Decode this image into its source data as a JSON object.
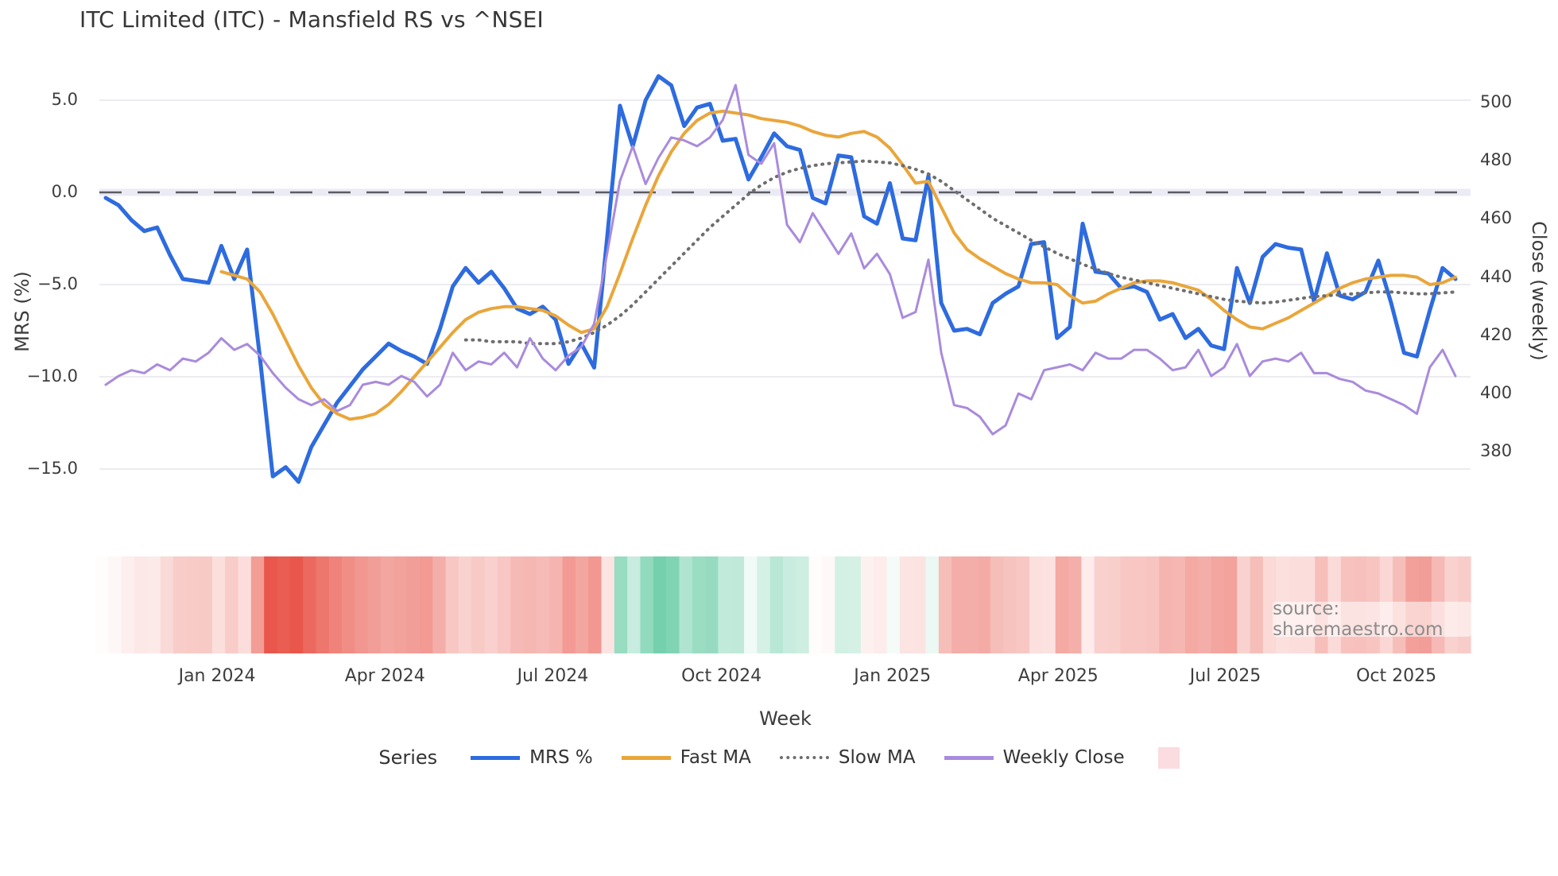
{
  "title": "ITC Limited (ITC) - Mansfield RS vs ^NSEI",
  "watermark": "source: sharemaestro.com",
  "axes": {
    "x_label": "Week",
    "y_left_label": "MRS (%)",
    "y_right_label": "Close (weekly)",
    "y_left_ticks": [
      {
        "label": "5.0",
        "value": 5
      },
      {
        "label": "0.0",
        "value": 0
      },
      {
        "label": "−5.0",
        "value": -5
      },
      {
        "label": "−10.0",
        "value": -10
      },
      {
        "label": "−15.0",
        "value": -15
      }
    ],
    "y_right_ticks": [
      {
        "label": "500",
        "value": 500
      },
      {
        "label": "480",
        "value": 480
      },
      {
        "label": "460",
        "value": 460
      },
      {
        "label": "440",
        "value": 440
      },
      {
        "label": "420",
        "value": 420
      },
      {
        "label": "400",
        "value": 400
      },
      {
        "label": "380",
        "value": 380
      }
    ],
    "x_ticks": [
      {
        "label": "Jan 2024",
        "week": 8.66
      },
      {
        "label": "Apr 2024",
        "week": 21.72
      },
      {
        "label": "Jul 2024",
        "week": 34.78
      },
      {
        "label": "Oct 2024",
        "week": 47.9
      },
      {
        "label": "Jan 2025",
        "week": 61.2
      },
      {
        "label": "Apr 2025",
        "week": 74.1
      },
      {
        "label": "Jul 2025",
        "week": 87.1
      },
      {
        "label": "Oct 2025",
        "week": 100.4
      }
    ]
  },
  "legend": {
    "series_label": "Series",
    "items": [
      {
        "label": "MRS %",
        "color": "#2d6bdf",
        "style": "solid"
      },
      {
        "label": "Fast MA",
        "color": "#e9a63b",
        "style": "solid"
      },
      {
        "label": "Slow MA",
        "color": "#6e6e6e",
        "style": "dotted"
      },
      {
        "label": "Weekly Close",
        "color": "#a98bdc",
        "style": "solid"
      }
    ],
    "heatmap_swatch_color": "#fbdce0"
  },
  "chart_data": {
    "type": "line",
    "x_unit": "week_index",
    "n_weeks": 106,
    "grid": true,
    "zero_line": {
      "value": 0,
      "color": "#5b5c62",
      "band_color": "#ebebf5"
    },
    "y_left_range": [
      -17,
      7
    ],
    "y_right_range": [
      375,
      510
    ],
    "series": [
      {
        "name": "MRS %",
        "axis": "left",
        "color": "#2d6bdf",
        "style": "solid",
        "width": 5,
        "values": [
          -0.3,
          -0.7,
          -1.5,
          -2.1,
          -1.9,
          -3.4,
          -4.7,
          -4.8,
          -4.9,
          -2.9,
          -4.7,
          -3.1,
          -9.0,
          -15.4,
          -14.9,
          -15.7,
          -13.8,
          -12.6,
          -11.4,
          -10.5,
          -9.6,
          -8.9,
          -8.2,
          -8.6,
          -8.9,
          -9.3,
          -7.4,
          -5.1,
          -4.1,
          -4.9,
          -4.3,
          -5.2,
          -6.3,
          -6.6,
          -6.2,
          -6.9,
          -9.3,
          -8.2,
          -9.5,
          -2.5,
          4.7,
          2.5,
          5.0,
          6.3,
          5.8,
          3.6,
          4.6,
          4.8,
          2.8,
          2.9,
          0.7,
          1.9,
          3.2,
          2.5,
          2.3,
          -0.3,
          -0.6,
          2.0,
          1.9,
          -1.3,
          -1.7,
          0.5,
          -2.5,
          -2.6,
          0.9,
          -6.0,
          -7.5,
          -7.4,
          -7.7,
          -6.0,
          -5.5,
          -5.1,
          -2.8,
          -2.7,
          -7.9,
          -7.3,
          -1.7,
          -4.3,
          -4.4,
          -5.2,
          -5.1,
          -5.4,
          -6.9,
          -6.6,
          -7.9,
          -7.4,
          -8.3,
          -8.5,
          -4.1,
          -6.0,
          -3.5,
          -2.8,
          -3.0,
          -3.1,
          -5.9,
          -3.3,
          -5.6,
          -5.8,
          -5.4,
          -3.7,
          -6.0,
          -8.7,
          -8.9,
          -6.4,
          -4.1,
          -4.7
        ]
      },
      {
        "name": "Fast MA",
        "axis": "left",
        "color": "#e9a63b",
        "style": "solid",
        "width": 4,
        "values": [
          null,
          null,
          null,
          null,
          null,
          null,
          null,
          null,
          null,
          -4.3,
          -4.5,
          -4.7,
          -5.4,
          -6.6,
          -8.0,
          -9.4,
          -10.6,
          -11.5,
          -12.0,
          -12.3,
          -12.2,
          -12.0,
          -11.5,
          -10.8,
          -10.0,
          -9.2,
          -8.4,
          -7.6,
          -6.9,
          -6.5,
          -6.3,
          -6.2,
          -6.2,
          -6.3,
          -6.4,
          -6.7,
          -7.2,
          -7.6,
          -7.4,
          -6.2,
          -4.4,
          -2.5,
          -0.7,
          0.9,
          2.2,
          3.2,
          3.9,
          4.3,
          4.4,
          4.3,
          4.2,
          4.0,
          3.9,
          3.8,
          3.6,
          3.3,
          3.1,
          3.0,
          3.2,
          3.3,
          3.0,
          2.4,
          1.5,
          0.5,
          0.6,
          -0.8,
          -2.2,
          -3.1,
          -3.6,
          -4.0,
          -4.4,
          -4.7,
          -4.9,
          -4.9,
          -5.0,
          -5.6,
          -6.0,
          -5.9,
          -5.5,
          -5.2,
          -4.9,
          -4.8,
          -4.8,
          -4.9,
          -5.1,
          -5.3,
          -5.8,
          -6.4,
          -6.9,
          -7.3,
          -7.4,
          -7.1,
          -6.8,
          -6.4,
          -6.0,
          -5.6,
          -5.2,
          -4.9,
          -4.7,
          -4.6,
          -4.5,
          -4.5,
          -4.6,
          -5.0,
          -4.9,
          -4.6
        ]
      },
      {
        "name": "Slow MA",
        "axis": "left",
        "color": "#6e6e6e",
        "style": "dotted",
        "width": 4,
        "values": [
          null,
          null,
          null,
          null,
          null,
          null,
          null,
          null,
          null,
          null,
          null,
          null,
          null,
          null,
          null,
          null,
          null,
          null,
          null,
          null,
          null,
          null,
          null,
          null,
          null,
          null,
          null,
          null,
          -8.0,
          -8.0,
          -8.1,
          -8.1,
          -8.1,
          -8.2,
          -8.2,
          -8.2,
          -8.1,
          -7.9,
          -7.6,
          -7.2,
          -6.7,
          -6.1,
          -5.4,
          -4.7,
          -4.0,
          -3.3,
          -2.6,
          -1.9,
          -1.3,
          -0.7,
          -0.1,
          0.4,
          0.8,
          1.1,
          1.3,
          1.45,
          1.55,
          1.6,
          1.65,
          1.7,
          1.65,
          1.6,
          1.45,
          1.25,
          1.0,
          0.6,
          0.1,
          -0.4,
          -0.9,
          -1.4,
          -1.8,
          -2.2,
          -2.6,
          -2.95,
          -3.3,
          -3.6,
          -3.9,
          -4.15,
          -4.4,
          -4.6,
          -4.75,
          -4.9,
          -5.05,
          -5.2,
          -5.35,
          -5.5,
          -5.65,
          -5.8,
          -5.9,
          -5.95,
          -6.0,
          -5.95,
          -5.85,
          -5.75,
          -5.65,
          -5.6,
          -5.55,
          -5.5,
          -5.45,
          -5.4,
          -5.4,
          -5.45,
          -5.5,
          -5.5,
          -5.45,
          -5.4
        ]
      },
      {
        "name": "Weekly Close",
        "axis": "right",
        "color": "#a98bdc",
        "style": "solid",
        "width": 3,
        "values": [
          403,
          406,
          408,
          407,
          410,
          408,
          412,
          411,
          414,
          419,
          415,
          417,
          413,
          407,
          402,
          398,
          396,
          398,
          394,
          396,
          403,
          404,
          403,
          406,
          404,
          399,
          403,
          414,
          408,
          411,
          410,
          414,
          409,
          419,
          412,
          408,
          413,
          416,
          424,
          448,
          473,
          485,
          472,
          481,
          488,
          487,
          485,
          488,
          494,
          506,
          482,
          479,
          486,
          458,
          452,
          462,
          455,
          448,
          455,
          443,
          448,
          441,
          426,
          428,
          446,
          414,
          396,
          395,
          392,
          386,
          389,
          400,
          398,
          408,
          409,
          410,
          408,
          414,
          412,
          412,
          415,
          415,
          412,
          408,
          409,
          415,
          406,
          409,
          417,
          406,
          411,
          412,
          411,
          414,
          407,
          407,
          405,
          404,
          401,
          400,
          398,
          396,
          393,
          409,
          415,
          406
        ]
      }
    ],
    "heatmap": {
      "source_series": "MRS %",
      "negative_color": "#e9564b",
      "positive_color": "#66cba4",
      "neutral_color": "#ffffff",
      "negative_full_scale": -15.5,
      "positive_full_scale": 7
    }
  }
}
